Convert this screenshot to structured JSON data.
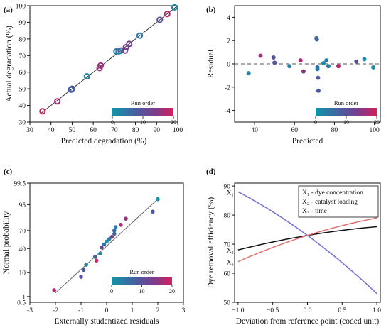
{
  "panels": {
    "a": "(a)",
    "b": "(b)",
    "c": "(c)",
    "d": "(d)"
  },
  "colorbar": {
    "title": "Run order",
    "ticks": [
      "0",
      "10",
      "20"
    ],
    "colors": [
      "#0f96a8",
      "#4a5da0",
      "#7a3d8c",
      "#d61f5a"
    ]
  },
  "chart_data": [
    {
      "id": "a",
      "type": "scatter",
      "xlabel": "Predicted degradation (%)",
      "ylabel": "Actual degradation (%)",
      "xlim": [
        30,
        100
      ],
      "ylim": [
        30,
        100
      ],
      "xticks": [
        30,
        40,
        50,
        60,
        70,
        80,
        90,
        100
      ],
      "yticks": [
        30,
        40,
        50,
        60,
        70,
        80,
        90,
        100
      ],
      "reference_line": "y = x",
      "points": [
        {
          "x": 36,
          "y": 36.5,
          "run": 19
        },
        {
          "x": 43,
          "y": 42.5,
          "run": 17
        },
        {
          "x": 49.5,
          "y": 49.5,
          "run": 6
        },
        {
          "x": 50,
          "y": 50,
          "run": 9
        },
        {
          "x": 57,
          "y": 57.5,
          "run": 3
        },
        {
          "x": 63,
          "y": 62.5,
          "run": 17
        },
        {
          "x": 63.5,
          "y": 64,
          "run": 16
        },
        {
          "x": 71,
          "y": 72.5,
          "run": 5
        },
        {
          "x": 72,
          "y": 72.5,
          "run": 1
        },
        {
          "x": 73,
          "y": 73,
          "run": 8
        },
        {
          "x": 75,
          "y": 73,
          "run": 12
        },
        {
          "x": 75.5,
          "y": 75,
          "run": 14
        },
        {
          "x": 77,
          "y": 77,
          "run": 13
        },
        {
          "x": 82,
          "y": 82,
          "run": 4
        },
        {
          "x": 91.5,
          "y": 91.5,
          "run": 10
        },
        {
          "x": 95,
          "y": 95,
          "run": 18
        },
        {
          "x": 98.5,
          "y": 99,
          "run": 2
        }
      ]
    },
    {
      "id": "b",
      "type": "scatter",
      "xlabel": "Predicted",
      "ylabel": "Residual",
      "xlim": [
        30,
        103
      ],
      "ylim": [
        -5,
        5
      ],
      "xticks": [
        40,
        60,
        80,
        100
      ],
      "yticks": [
        -4,
        -2,
        0,
        2,
        4
      ],
      "reference_line": "y = 0",
      "points": [
        {
          "x": 37,
          "y": -0.8,
          "run": 2
        },
        {
          "x": 43,
          "y": 0.7,
          "run": 16
        },
        {
          "x": 49.5,
          "y": 0.55,
          "run": 9
        },
        {
          "x": 50,
          "y": 0.1,
          "run": 9
        },
        {
          "x": 57.5,
          "y": -0.2,
          "run": 3
        },
        {
          "x": 63,
          "y": 0.3,
          "run": 18
        },
        {
          "x": 64.5,
          "y": -0.65,
          "run": 15
        },
        {
          "x": 71,
          "y": 2.2,
          "run": 6
        },
        {
          "x": 71.2,
          "y": 2.1,
          "run": 7
        },
        {
          "x": 71.5,
          "y": -0.3,
          "run": 5
        },
        {
          "x": 71.5,
          "y": -0.45,
          "run": 4
        },
        {
          "x": 71.8,
          "y": -1.2,
          "run": 8
        },
        {
          "x": 72,
          "y": -2.3,
          "run": 8
        },
        {
          "x": 74.5,
          "y": 0.05,
          "run": 1
        },
        {
          "x": 76,
          "y": 0.3,
          "run": 3
        },
        {
          "x": 77,
          "y": -0.2,
          "run": 4
        },
        {
          "x": 82,
          "y": -0.2,
          "run": 18
        },
        {
          "x": 91,
          "y": 0.2,
          "run": 11
        },
        {
          "x": 95,
          "y": 0.4,
          "run": 2
        },
        {
          "x": 99.5,
          "y": -0.3,
          "run": 2
        }
      ]
    },
    {
      "id": "c",
      "type": "scatter",
      "xlabel": "Externally studentized residuals",
      "ylabel": "Normal probability",
      "xlim": [
        -3,
        3
      ],
      "ylim": [
        0.5,
        99.5
      ],
      "yscale": "normal probability",
      "xticks": [
        -3,
        -2,
        -1,
        0,
        1,
        2,
        3
      ],
      "yticks": [
        1,
        10,
        40,
        70,
        95,
        99.5
      ],
      "yticklabels": [
        "1",
        "10",
        "40",
        "70",
        "95",
        "99.5"
      ],
      "extra_bottom_tick": "0.5",
      "reference_line": [
        [
          -2,
          1.5
        ],
        [
          2,
          97
        ]
      ],
      "points": [
        {
          "x": -2.05,
          "y": 2,
          "run": 18
        },
        {
          "x": -1,
          "y": 7,
          "run": 10
        },
        {
          "x": -0.9,
          "y": 12,
          "run": 9
        },
        {
          "x": -0.8,
          "y": 17,
          "run": 3
        },
        {
          "x": -0.4,
          "y": 22,
          "run": 19
        },
        {
          "x": -0.45,
          "y": 27,
          "run": 7
        },
        {
          "x": -0.25,
          "y": 32,
          "run": 2
        },
        {
          "x": -0.2,
          "y": 42,
          "run": 12
        },
        {
          "x": -0.1,
          "y": 47,
          "run": 5
        },
        {
          "x": 0,
          "y": 52,
          "run": 1
        },
        {
          "x": 0.1,
          "y": 56,
          "run": 3
        },
        {
          "x": 0.2,
          "y": 60,
          "run": 14
        },
        {
          "x": 0.3,
          "y": 65,
          "run": 7
        },
        {
          "x": 0.3,
          "y": 70,
          "run": 6
        },
        {
          "x": 0.35,
          "y": 75,
          "run": 4
        },
        {
          "x": 0.55,
          "y": 78,
          "run": 17
        },
        {
          "x": 0.75,
          "y": 85,
          "run": 16
        },
        {
          "x": 1.8,
          "y": 91,
          "run": 8
        },
        {
          "x": 2,
          "y": 97,
          "run": 1
        }
      ]
    },
    {
      "id": "d",
      "type": "line",
      "xlabel": "Deviation from reference point (coded unit)",
      "ylabel": "Dye removal efficiency (%)",
      "xlim": [
        -1.05,
        1.05
      ],
      "ylim": [
        50,
        91
      ],
      "xticks": [
        -1.0,
        -0.5,
        0.0,
        0.5,
        1.0
      ],
      "xticklabels": [
        "−1.0",
        "−0.5",
        "0.0",
        "0.5",
        "1.0"
      ],
      "yticks": [
        50,
        60,
        70,
        80,
        90
      ],
      "legend": [
        "X₁ - dye concentration",
        "X₂ - catalyst loading",
        "X₃ - time"
      ],
      "legend_position": "top-right",
      "line_labels": [
        "X₁",
        "X₂",
        "X₃"
      ],
      "series": [
        {
          "color": "#6f6fd6",
          "x": [
            -1,
            -0.5,
            0,
            0.5,
            1
          ],
          "y": [
            88,
            80.7,
            73,
            63.5,
            53
          ]
        },
        {
          "color": "#111111",
          "x": [
            -1,
            -0.5,
            0,
            0.5,
            1
          ],
          "y": [
            68,
            70.8,
            73,
            74.7,
            76
          ]
        },
        {
          "color": "#e07070",
          "x": [
            -1,
            -0.5,
            0,
            0.5,
            1
          ],
          "y": [
            64,
            68.6,
            73,
            76.2,
            79
          ]
        }
      ]
    }
  ]
}
